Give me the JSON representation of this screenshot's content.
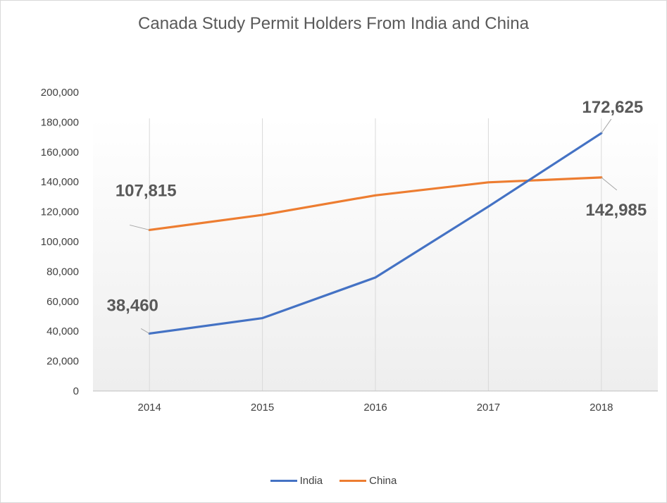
{
  "chart_data": {
    "type": "line",
    "title": "Canada Study Permit Holders From India and China",
    "categories": [
      "2014",
      "2015",
      "2016",
      "2017",
      "2018"
    ],
    "series": [
      {
        "name": "India",
        "color": "#4472C4",
        "values": [
          38460,
          48800,
          76000,
          123500,
          172625
        ]
      },
      {
        "name": "China",
        "color": "#ED7D31",
        "values": [
          107815,
          117900,
          131000,
          139700,
          142985
        ]
      }
    ],
    "ylim": [
      0,
      200000
    ],
    "yticks": [
      "0",
      "20,000",
      "40,000",
      "60,000",
      "80,000",
      "100,000",
      "120,000",
      "140,000",
      "160,000",
      "180,000",
      "200,000"
    ],
    "data_labels": [
      {
        "series": 1,
        "index": 0,
        "text": "107,815"
      },
      {
        "series": 0,
        "index": 0,
        "text": "38,460"
      },
      {
        "series": 0,
        "index": 4,
        "text": "172,625"
      },
      {
        "series": 1,
        "index": 4,
        "text": "142,985"
      }
    ],
    "legend_position": "bottom",
    "grid": "vertical"
  }
}
